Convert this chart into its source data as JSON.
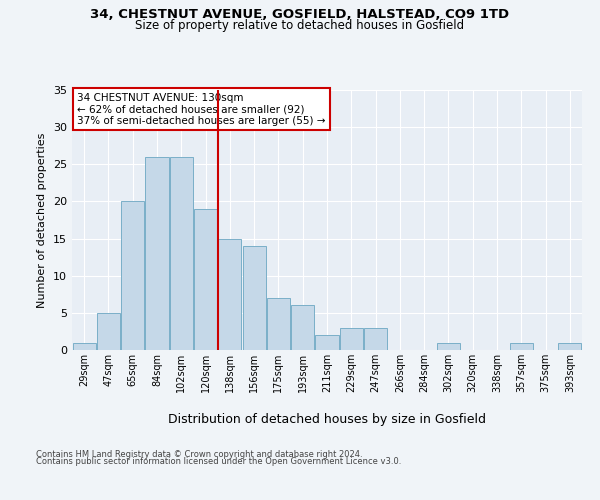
{
  "title1": "34, CHESTNUT AVENUE, GOSFIELD, HALSTEAD, CO9 1TD",
  "title2": "Size of property relative to detached houses in Gosfield",
  "xlabel": "Distribution of detached houses by size in Gosfield",
  "ylabel": "Number of detached properties",
  "categories": [
    "29sqm",
    "47sqm",
    "65sqm",
    "84sqm",
    "102sqm",
    "120sqm",
    "138sqm",
    "156sqm",
    "175sqm",
    "193sqm",
    "211sqm",
    "229sqm",
    "247sqm",
    "266sqm",
    "284sqm",
    "302sqm",
    "320sqm",
    "338sqm",
    "357sqm",
    "375sqm",
    "393sqm"
  ],
  "values": [
    1,
    5,
    20,
    26,
    26,
    19,
    15,
    14,
    7,
    6,
    2,
    3,
    3,
    0,
    0,
    1,
    0,
    0,
    1,
    0,
    1
  ],
  "ylim": [
    0,
    35
  ],
  "yticks": [
    0,
    5,
    10,
    15,
    20,
    25,
    30,
    35
  ],
  "bar_color": "#c5d8e8",
  "bar_edge_color": "#7aafc8",
  "vline_x": 6.0,
  "vline_color": "#cc0000",
  "annotation_text": "34 CHESTNUT AVENUE: 130sqm\n← 62% of detached houses are smaller (92)\n37% of semi-detached houses are larger (55) →",
  "annotation_box_color": "#ffffff",
  "annotation_box_edge_color": "#cc0000",
  "footer1": "Contains HM Land Registry data © Crown copyright and database right 2024.",
  "footer2": "Contains public sector information licensed under the Open Government Licence v3.0.",
  "bg_color": "#f0f4f8",
  "plot_bg_color": "#e8eef5"
}
